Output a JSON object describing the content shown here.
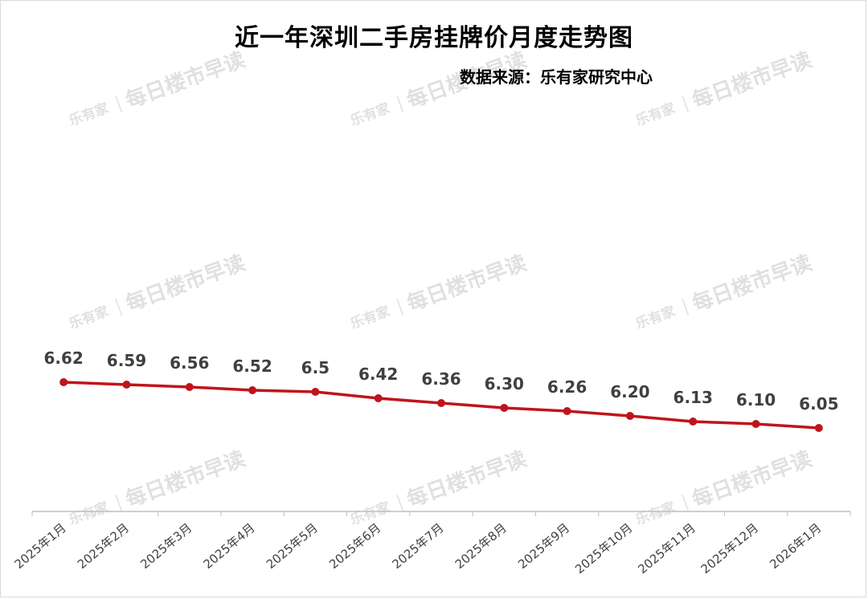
{
  "header": {
    "title": "近一年深圳二手房挂牌价月度走势图",
    "source": "数据来源：乐有家研究中心"
  },
  "watermark": {
    "logo": "乐有家",
    "text": "每日楼市早读"
  },
  "colors": {
    "line": "#c0141c",
    "axis": "#bfbfbf",
    "label": "#404040",
    "watermark": "#c8c8c8"
  },
  "chart_data": {
    "type": "line",
    "title": "近一年深圳二手房挂牌价月度走势图",
    "subtitle": "数据来源：乐有家研究中心",
    "xlabel": "",
    "ylabel": "",
    "categories": [
      "2025年1月",
      "2025年2月",
      "2025年3月",
      "2025年4月",
      "2025年5月",
      "2025年6月",
      "2025年7月",
      "2025年8月",
      "2025年9月",
      "2025年10月",
      "2025年11月",
      "2025年12月",
      "2026年1月"
    ],
    "series": [
      {
        "values": [
          6.62,
          6.59,
          6.56,
          6.52,
          6.5,
          6.42,
          6.36,
          6.3,
          6.26,
          6.2,
          6.13,
          6.1,
          6.05
        ],
        "labels": [
          "6.62",
          "6.59",
          "6.56",
          "6.52",
          "6.5",
          "6.42",
          "6.36",
          "6.30",
          "6.26",
          "6.20",
          "6.13",
          "6.10",
          "6.05"
        ]
      }
    ],
    "grid": false,
    "legend": "none",
    "y_axis_visible": false
  }
}
